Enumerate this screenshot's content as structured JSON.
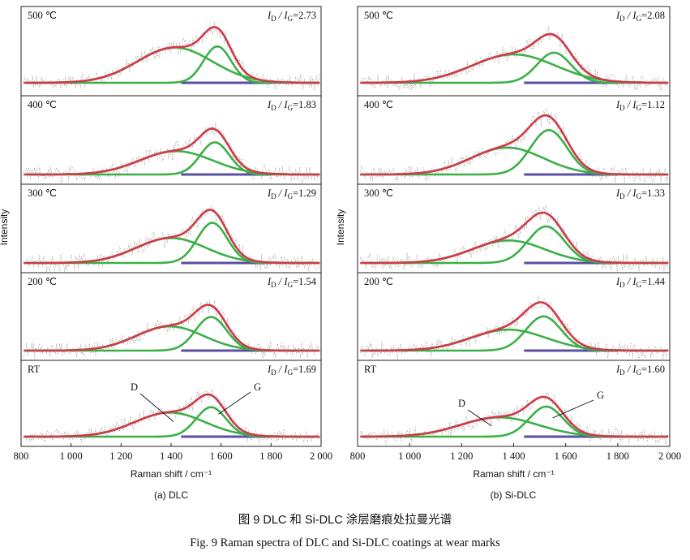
{
  "caption_cn": "图 9 DLC 和 Si-DLC 涂层磨痕处拉曼光谱",
  "caption_en": "Fig. 9 Raman spectra of DLC and Si-DLC coatings at wear marks",
  "colors": {
    "fit": "#cc3b48",
    "peak": "#3daf47",
    "baseline": "#5a4fa0",
    "raw": "#9a9a9a",
    "frame": "#222222"
  },
  "chart_data": [
    {
      "type": "line",
      "title": "(a) DLC",
      "xlabel": "Raman shift / cm⁻¹",
      "ylabel": "Intensity",
      "xlim": [
        800,
        2000
      ],
      "xticks": [
        800,
        1000,
        1200,
        1400,
        1600,
        1800,
        2000
      ],
      "xtick_labels": [
        "800",
        "1 000",
        "1 200",
        "1 400",
        "1 600",
        "1 800",
        "2 000"
      ],
      "series": [
        "measured spectrum (dotted)",
        "fitted curve",
        "D peak",
        "G peak",
        "baseline"
      ],
      "panels": [
        {
          "label": "500 ℃",
          "ratio_label": "I",
          "ratio_sub1": "D",
          "ratio_mid": " / I",
          "ratio_sub2": "G",
          "ratio_value": "=2.73",
          "ratio": 2.73,
          "D": {
            "center": 1415,
            "width": 150,
            "height": 0.62
          },
          "G": {
            "center": 1585,
            "width": 55,
            "height": 0.64
          }
        },
        {
          "label": "400 ℃",
          "ratio_label": "I",
          "ratio_sub1": "D",
          "ratio_mid": " / I",
          "ratio_sub2": "G",
          "ratio_value": "=1.83",
          "ratio": 1.83,
          "D": {
            "center": 1420,
            "width": 145,
            "height": 0.4
          },
          "G": {
            "center": 1575,
            "width": 58,
            "height": 0.55
          }
        },
        {
          "label": "300 ℃",
          "ratio_label": "I",
          "ratio_sub1": "D",
          "ratio_mid": " / I",
          "ratio_sub2": "G",
          "ratio_value": "=1.29",
          "ratio": 1.29,
          "D": {
            "center": 1400,
            "width": 140,
            "height": 0.41
          },
          "G": {
            "center": 1565,
            "width": 60,
            "height": 0.66
          }
        },
        {
          "label": "200 ℃",
          "ratio_label": "I",
          "ratio_sub1": "D",
          "ratio_mid": " / I",
          "ratio_sub2": "G",
          "ratio_value": "=1.54",
          "ratio": 1.54,
          "D": {
            "center": 1395,
            "width": 135,
            "height": 0.44
          },
          "G": {
            "center": 1560,
            "width": 62,
            "height": 0.61
          }
        },
        {
          "label": "RT",
          "ratio_label": "I",
          "ratio_sub1": "D",
          "ratio_mid": " / I",
          "ratio_sub2": "G",
          "ratio_value": "=1.69",
          "ratio": 1.69,
          "D": {
            "center": 1395,
            "width": 140,
            "height": 0.45
          },
          "G": {
            "center": 1560,
            "width": 60,
            "height": 0.55
          },
          "annotations": [
            "D",
            "G"
          ]
        }
      ]
    },
    {
      "type": "line",
      "title": "(b) Si-DLC",
      "xlabel": "Raman shift / cm⁻¹",
      "ylabel": "Intensity",
      "xlim": [
        800,
        2000
      ],
      "xticks": [
        800,
        1000,
        1200,
        1400,
        1600,
        1800,
        2000
      ],
      "xtick_labels": [
        "800",
        "1 000",
        "1 200",
        "1 400",
        "1 600",
        "1 800",
        "2 000"
      ],
      "series": [
        "measured spectrum (dotted)",
        "fitted curve",
        "D peak",
        "G peak",
        "baseline"
      ],
      "panels": [
        {
          "label": "500 ℃",
          "ratio_label": "I",
          "ratio_sub1": "D",
          "ratio_mid": " / I",
          "ratio_sub2": "G",
          "ratio_value": "=2.08",
          "ratio": 2.08,
          "D": {
            "center": 1400,
            "width": 160,
            "height": 0.5
          },
          "G": {
            "center": 1555,
            "width": 65,
            "height": 0.53
          }
        },
        {
          "label": "400 ℃",
          "ratio_label": "I",
          "ratio_sub1": "D",
          "ratio_mid": " / I",
          "ratio_sub2": "G",
          "ratio_value": "=1.12",
          "ratio": 1.12,
          "D": {
            "center": 1375,
            "width": 140,
            "height": 0.46
          },
          "G": {
            "center": 1535,
            "width": 70,
            "height": 0.76
          }
        },
        {
          "label": "300 ℃",
          "ratio_label": "I",
          "ratio_sub1": "D",
          "ratio_mid": " / I",
          "ratio_sub2": "G",
          "ratio_value": "=1.33",
          "ratio": 1.33,
          "D": {
            "center": 1380,
            "width": 140,
            "height": 0.37
          },
          "G": {
            "center": 1525,
            "width": 70,
            "height": 0.6
          }
        },
        {
          "label": "200 ℃",
          "ratio_label": "I",
          "ratio_sub1": "D",
          "ratio_mid": " / I",
          "ratio_sub2": "G",
          "ratio_value": "=1.44",
          "ratio": 1.44,
          "D": {
            "center": 1380,
            "width": 145,
            "height": 0.38
          },
          "G": {
            "center": 1515,
            "width": 68,
            "height": 0.62
          }
        },
        {
          "label": "RT",
          "ratio_label": "I",
          "ratio_sub1": "D",
          "ratio_mid": " / I",
          "ratio_sub2": "G",
          "ratio_value": "=1.60",
          "ratio": 1.6,
          "D": {
            "center": 1345,
            "width": 150,
            "height": 0.36
          },
          "G": {
            "center": 1525,
            "width": 65,
            "height": 0.56
          },
          "annotations": [
            "D",
            "G"
          ]
        }
      ]
    }
  ]
}
